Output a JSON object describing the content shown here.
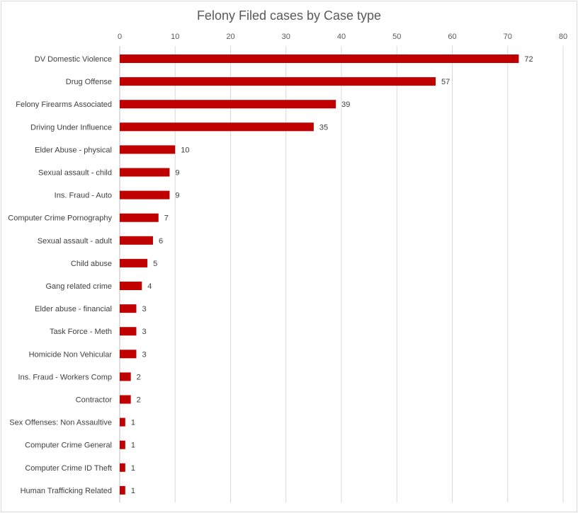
{
  "chart_data": {
    "type": "bar",
    "orientation": "horizontal",
    "title": "Felony Filed cases by Case type",
    "xlabel": "",
    "ylabel": "",
    "xlim": [
      0,
      80
    ],
    "x_ticks": [
      0,
      10,
      20,
      30,
      40,
      50,
      60,
      70,
      80
    ],
    "x_axis_position": "top",
    "grid": true,
    "legend": "none",
    "bar_color": "#c00000",
    "categories": [
      "DV Domestic Violence",
      "Drug Offense",
      "Felony Firearms Associated",
      "Driving Under Influence",
      "Elder Abuse - physical",
      "Sexual assault - child",
      "Ins. Fraud - Auto",
      "Computer Crime Pornography",
      "Sexual assault - adult",
      "Child abuse",
      "Gang related crime",
      "Elder abuse - financial",
      "Task Force - Meth",
      "Homicide Non Vehicular",
      "Ins. Fraud - Workers Comp",
      "Contractor",
      "Sex Offenses: Non Assaultive",
      "Computer Crime General",
      "Computer Crime ID Theft",
      "Human Trafficking Related"
    ],
    "values": [
      72,
      57,
      39,
      35,
      10,
      9,
      9,
      7,
      6,
      5,
      4,
      3,
      3,
      3,
      2,
      2,
      1,
      1,
      1,
      1
    ]
  }
}
